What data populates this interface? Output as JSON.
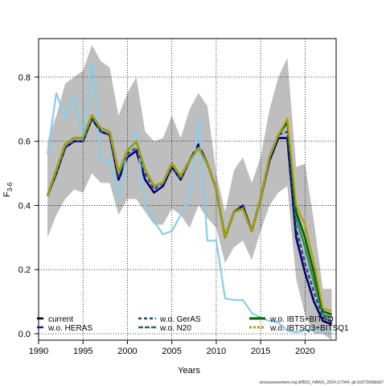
{
  "chart_data": {
    "type": "line",
    "xlabel": "Years",
    "ylabel": "F",
    "ylabel_sub": "3-6",
    "xlim": [
      1990,
      2023.5
    ],
    "ylim": [
      -0.02,
      0.92
    ],
    "x_ticks": [
      1990,
      1995,
      2000,
      2005,
      2010,
      2015,
      2020
    ],
    "y_ticks": [
      0.0,
      0.2,
      0.4,
      0.6,
      0.8
    ],
    "grid": true,
    "legend_position": "bottom",
    "band": {
      "color": "#bebebe",
      "x": [
        1991,
        1992,
        1993,
        1994,
        1995,
        1996,
        1997,
        1998,
        1999,
        2000,
        2001,
        2002,
        2003,
        2004,
        2005,
        2006,
        2007,
        2008,
        2009,
        2010,
        2011,
        2012,
        2013,
        2014,
        2015,
        2016,
        2017,
        2018,
        2019,
        2020,
        2021,
        2022,
        2023
      ],
      "upper": [
        0.6,
        0.68,
        0.78,
        0.8,
        0.82,
        0.9,
        0.85,
        0.83,
        0.68,
        0.75,
        0.8,
        0.63,
        0.6,
        0.61,
        0.68,
        0.61,
        0.7,
        0.75,
        0.71,
        0.5,
        0.38,
        0.51,
        0.55,
        0.47,
        0.55,
        0.7,
        0.8,
        0.86,
        0.52,
        0.53,
        0.35,
        0.14,
        0.14
      ],
      "lower": [
        0.3,
        0.37,
        0.42,
        0.45,
        0.44,
        0.5,
        0.47,
        0.47,
        0.37,
        0.42,
        0.42,
        0.38,
        0.34,
        0.34,
        0.39,
        0.37,
        0.33,
        0.4,
        0.36,
        0.33,
        0.22,
        0.27,
        0.29,
        0.23,
        0.32,
        0.4,
        0.44,
        0.46,
        0.17,
        0.06,
        0.0,
        0.0,
        -0.02
      ]
    },
    "series": [
      {
        "name": "current",
        "color": "#000080",
        "dash": "solid",
        "x": [
          1991,
          1992,
          1993,
          1994,
          1995,
          1996,
          1997,
          1998,
          1999,
          2000,
          2001,
          2002,
          2003,
          2004,
          2005,
          2006,
          2007,
          2008,
          2009,
          2010,
          2011,
          2012,
          2013,
          2014,
          2015,
          2016,
          2017,
          2018,
          2019,
          2020,
          2021,
          2022,
          2023
        ],
        "values": [
          0.43,
          0.5,
          0.58,
          0.6,
          0.6,
          0.67,
          0.63,
          0.62,
          0.48,
          0.55,
          0.57,
          0.48,
          0.44,
          0.46,
          0.52,
          0.48,
          0.54,
          0.59,
          0.53,
          0.45,
          0.3,
          0.38,
          0.4,
          0.32,
          0.42,
          0.54,
          0.61,
          0.61,
          0.3,
          0.19,
          0.1,
          0.04,
          0.03
        ]
      },
      {
        "name": "w.o. HERAS",
        "color": "#87ceeb",
        "dash": "solid",
        "x": [
          1991,
          1992,
          1993,
          1994,
          1995,
          1996,
          1997,
          1998,
          1999,
          2000,
          2001,
          2002,
          2003,
          2004,
          2005,
          2006,
          2007,
          2008,
          2009,
          2010,
          2011,
          2012,
          2013,
          2014,
          2015,
          2016,
          2017,
          2018,
          2019,
          2020,
          2021,
          2022,
          2023
        ],
        "values": [
          0.56,
          0.75,
          0.67,
          0.74,
          0.6,
          0.85,
          0.54,
          0.54,
          0.42,
          0.57,
          0.63,
          0.4,
          0.35,
          0.31,
          0.32,
          0.37,
          0.42,
          0.67,
          0.29,
          0.29,
          0.11,
          0.105,
          0.105,
          0.065,
          0.05,
          0.04,
          0.035,
          0.01,
          0.005,
          0.01,
          0.01,
          0.01,
          0.01
        ]
      },
      {
        "name": "w.o. GerAS",
        "color": "#1a4d6e",
        "dash": "dashed",
        "x": [
          1991,
          1992,
          1993,
          1994,
          1995,
          1996,
          1997,
          1998,
          1999,
          2000,
          2001,
          2002,
          2003,
          2004,
          2005,
          2006,
          2007,
          2008,
          2009,
          2010,
          2011,
          2012,
          2013,
          2014,
          2015,
          2016,
          2017,
          2018,
          2019,
          2020,
          2021,
          2022,
          2023
        ],
        "values": [
          0.43,
          0.5,
          0.58,
          0.6,
          0.6,
          0.67,
          0.63,
          0.62,
          0.49,
          0.56,
          0.58,
          0.5,
          0.45,
          0.47,
          0.52,
          0.48,
          0.54,
          0.58,
          0.53,
          0.45,
          0.3,
          0.38,
          0.4,
          0.32,
          0.42,
          0.55,
          0.62,
          0.63,
          0.33,
          0.22,
          0.13,
          0.05,
          0.04
        ]
      },
      {
        "name": "w.o. N20",
        "color": "#2e8b57",
        "dash": "solid",
        "x": [
          1991,
          1992,
          1993,
          1994,
          1995,
          1996,
          1997,
          1998,
          1999,
          2000,
          2001,
          2002,
          2003,
          2004,
          2005,
          2006,
          2007,
          2008,
          2009,
          2010,
          2011,
          2012,
          2013,
          2014,
          2015,
          2016,
          2017,
          2018,
          2019,
          2020,
          2021,
          2022,
          2023
        ],
        "values": [
          0.43,
          0.51,
          0.59,
          0.61,
          0.61,
          0.68,
          0.64,
          0.63,
          0.5,
          0.57,
          0.6,
          0.51,
          0.46,
          0.47,
          0.53,
          0.49,
          0.54,
          0.58,
          0.53,
          0.45,
          0.3,
          0.38,
          0.39,
          0.32,
          0.42,
          0.55,
          0.62,
          0.66,
          0.36,
          0.27,
          0.16,
          0.06,
          0.05
        ]
      },
      {
        "name": "w.o. IBTS+BITSQ",
        "color": "#006400",
        "dash": "solid",
        "x": [
          1991,
          1992,
          1993,
          1994,
          1995,
          1996,
          1997,
          1998,
          1999,
          2000,
          2001,
          2002,
          2003,
          2004,
          2005,
          2006,
          2007,
          2008,
          2009,
          2010,
          2011,
          2012,
          2013,
          2014,
          2015,
          2016,
          2017,
          2018,
          2019,
          2020,
          2021,
          2022,
          2023
        ],
        "values": [
          0.43,
          0.51,
          0.59,
          0.61,
          0.61,
          0.68,
          0.64,
          0.63,
          0.5,
          0.57,
          0.6,
          0.51,
          0.46,
          0.47,
          0.53,
          0.49,
          0.54,
          0.58,
          0.53,
          0.45,
          0.3,
          0.38,
          0.39,
          0.32,
          0.42,
          0.55,
          0.62,
          0.66,
          0.38,
          0.3,
          0.19,
          0.07,
          0.06
        ]
      },
      {
        "name": "w.o. IBTSQ3+BITSQ1",
        "color": "#b8a000",
        "dash": "solid",
        "x": [
          1991,
          1992,
          1993,
          1994,
          1995,
          1996,
          1997,
          1998,
          1999,
          2000,
          2001,
          2002,
          2003,
          2004,
          2005,
          2006,
          2007,
          2008,
          2009,
          2010,
          2011,
          2012,
          2013,
          2014,
          2015,
          2016,
          2017,
          2018,
          2019,
          2020,
          2021,
          2022,
          2023
        ],
        "values": [
          0.43,
          0.51,
          0.59,
          0.61,
          0.61,
          0.68,
          0.64,
          0.63,
          0.5,
          0.57,
          0.6,
          0.51,
          0.46,
          0.47,
          0.53,
          0.49,
          0.54,
          0.58,
          0.53,
          0.45,
          0.3,
          0.38,
          0.39,
          0.32,
          0.42,
          0.55,
          0.62,
          0.67,
          0.4,
          0.34,
          0.22,
          0.08,
          0.07
        ]
      }
    ],
    "legend_labels": {
      "current": "current",
      "heras": "w.o. HERAS",
      "geras": "w.o. GerAS",
      "n20": "w.o. N20",
      "ibts": "w.o. IBTS+BITSQ",
      "ibtsq3": "w.o. IBTSQ3+BITSQ1"
    }
  },
  "footer": "stockassessment.org,WBSS_HAWG_2024,r17044, git:3c872568b0d7"
}
